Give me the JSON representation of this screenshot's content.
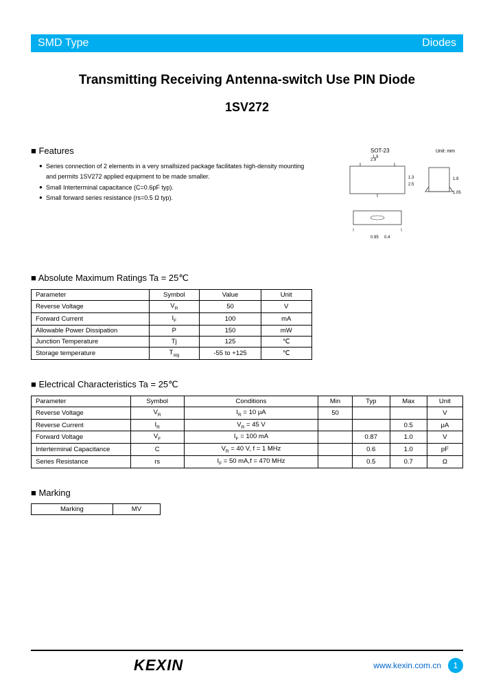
{
  "header": {
    "left": "SMD Type",
    "right": "Diodes"
  },
  "title": "Transmitting Receiving Antenna-switch Use PIN Diode",
  "part_number": "1SV272",
  "features": {
    "heading": "Features",
    "items": [
      "Series connection of 2 elements in a very smallsized package facilitates high-density mounting and permits 1SV272 applied equipment to be made smaller.",
      "Small Interterminal capacitance (C=0.6pF typ).",
      "Small forward series resistance (rs=0.5 Ω typ)."
    ]
  },
  "package": {
    "label": "SOT-23",
    "unit": "Unit: mm"
  },
  "ratings": {
    "heading": "Absolute Maximum Ratings Ta = 25℃",
    "headers": [
      "Parameter",
      "Symbol",
      "Value",
      "Unit"
    ],
    "rows": [
      [
        "Reverse Voltage",
        "V<sub>R</sub>",
        "50",
        "V"
      ],
      [
        "Forward Current",
        "I<sub>F</sub>",
        "100",
        "mA"
      ],
      [
        "Allowable Power Dissipation",
        "P",
        "150",
        "mW"
      ],
      [
        "Junction Temperature",
        "Tj",
        "125",
        "℃"
      ],
      [
        "Storage temperature",
        "T<sub>stg</sub>",
        "-55 to +125",
        "℃"
      ]
    ]
  },
  "electrical": {
    "heading": "Electrical Characteristics Ta = 25℃",
    "headers": [
      "Parameter",
      "Symbol",
      "Conditions",
      "Min",
      "Typ",
      "Max",
      "Unit"
    ],
    "rows": [
      [
        "Reverse Voltage",
        "V<sub>R</sub>",
        "I<sub>R</sub> = 10 μA",
        "50",
        "",
        "",
        "V"
      ],
      [
        "Reverse Current",
        "I<sub>R</sub>",
        "V<sub>R</sub> = 45 V",
        "",
        "",
        "0.5",
        "μA"
      ],
      [
        "Forward Voltage",
        "V<sub>F</sub>",
        "I<sub>F</sub> = 100 mA",
        "",
        "0.87",
        "1.0",
        "V"
      ],
      [
        "Interterminal Capacitance",
        "C",
        "V<sub>R</sub> = 40 V, f = 1 MHz",
        "",
        "0.6",
        "1.0",
        "pF"
      ],
      [
        "Series Resistance",
        "rs",
        "I<sub>F</sub> = 50 mA,f = 470 MHz",
        "",
        "0.5",
        "0.7",
        "Ω"
      ]
    ]
  },
  "marking": {
    "heading": "Marking",
    "rows": [
      [
        "Marking",
        "MV"
      ]
    ]
  },
  "footer": {
    "logo": "KEXIN",
    "url": "www.kexin.com.cn",
    "page": "1"
  },
  "colors": {
    "accent": "#00aeef",
    "border": "#000000",
    "link": "#0066cc",
    "text": "#000000",
    "bg": "#ffffff"
  }
}
